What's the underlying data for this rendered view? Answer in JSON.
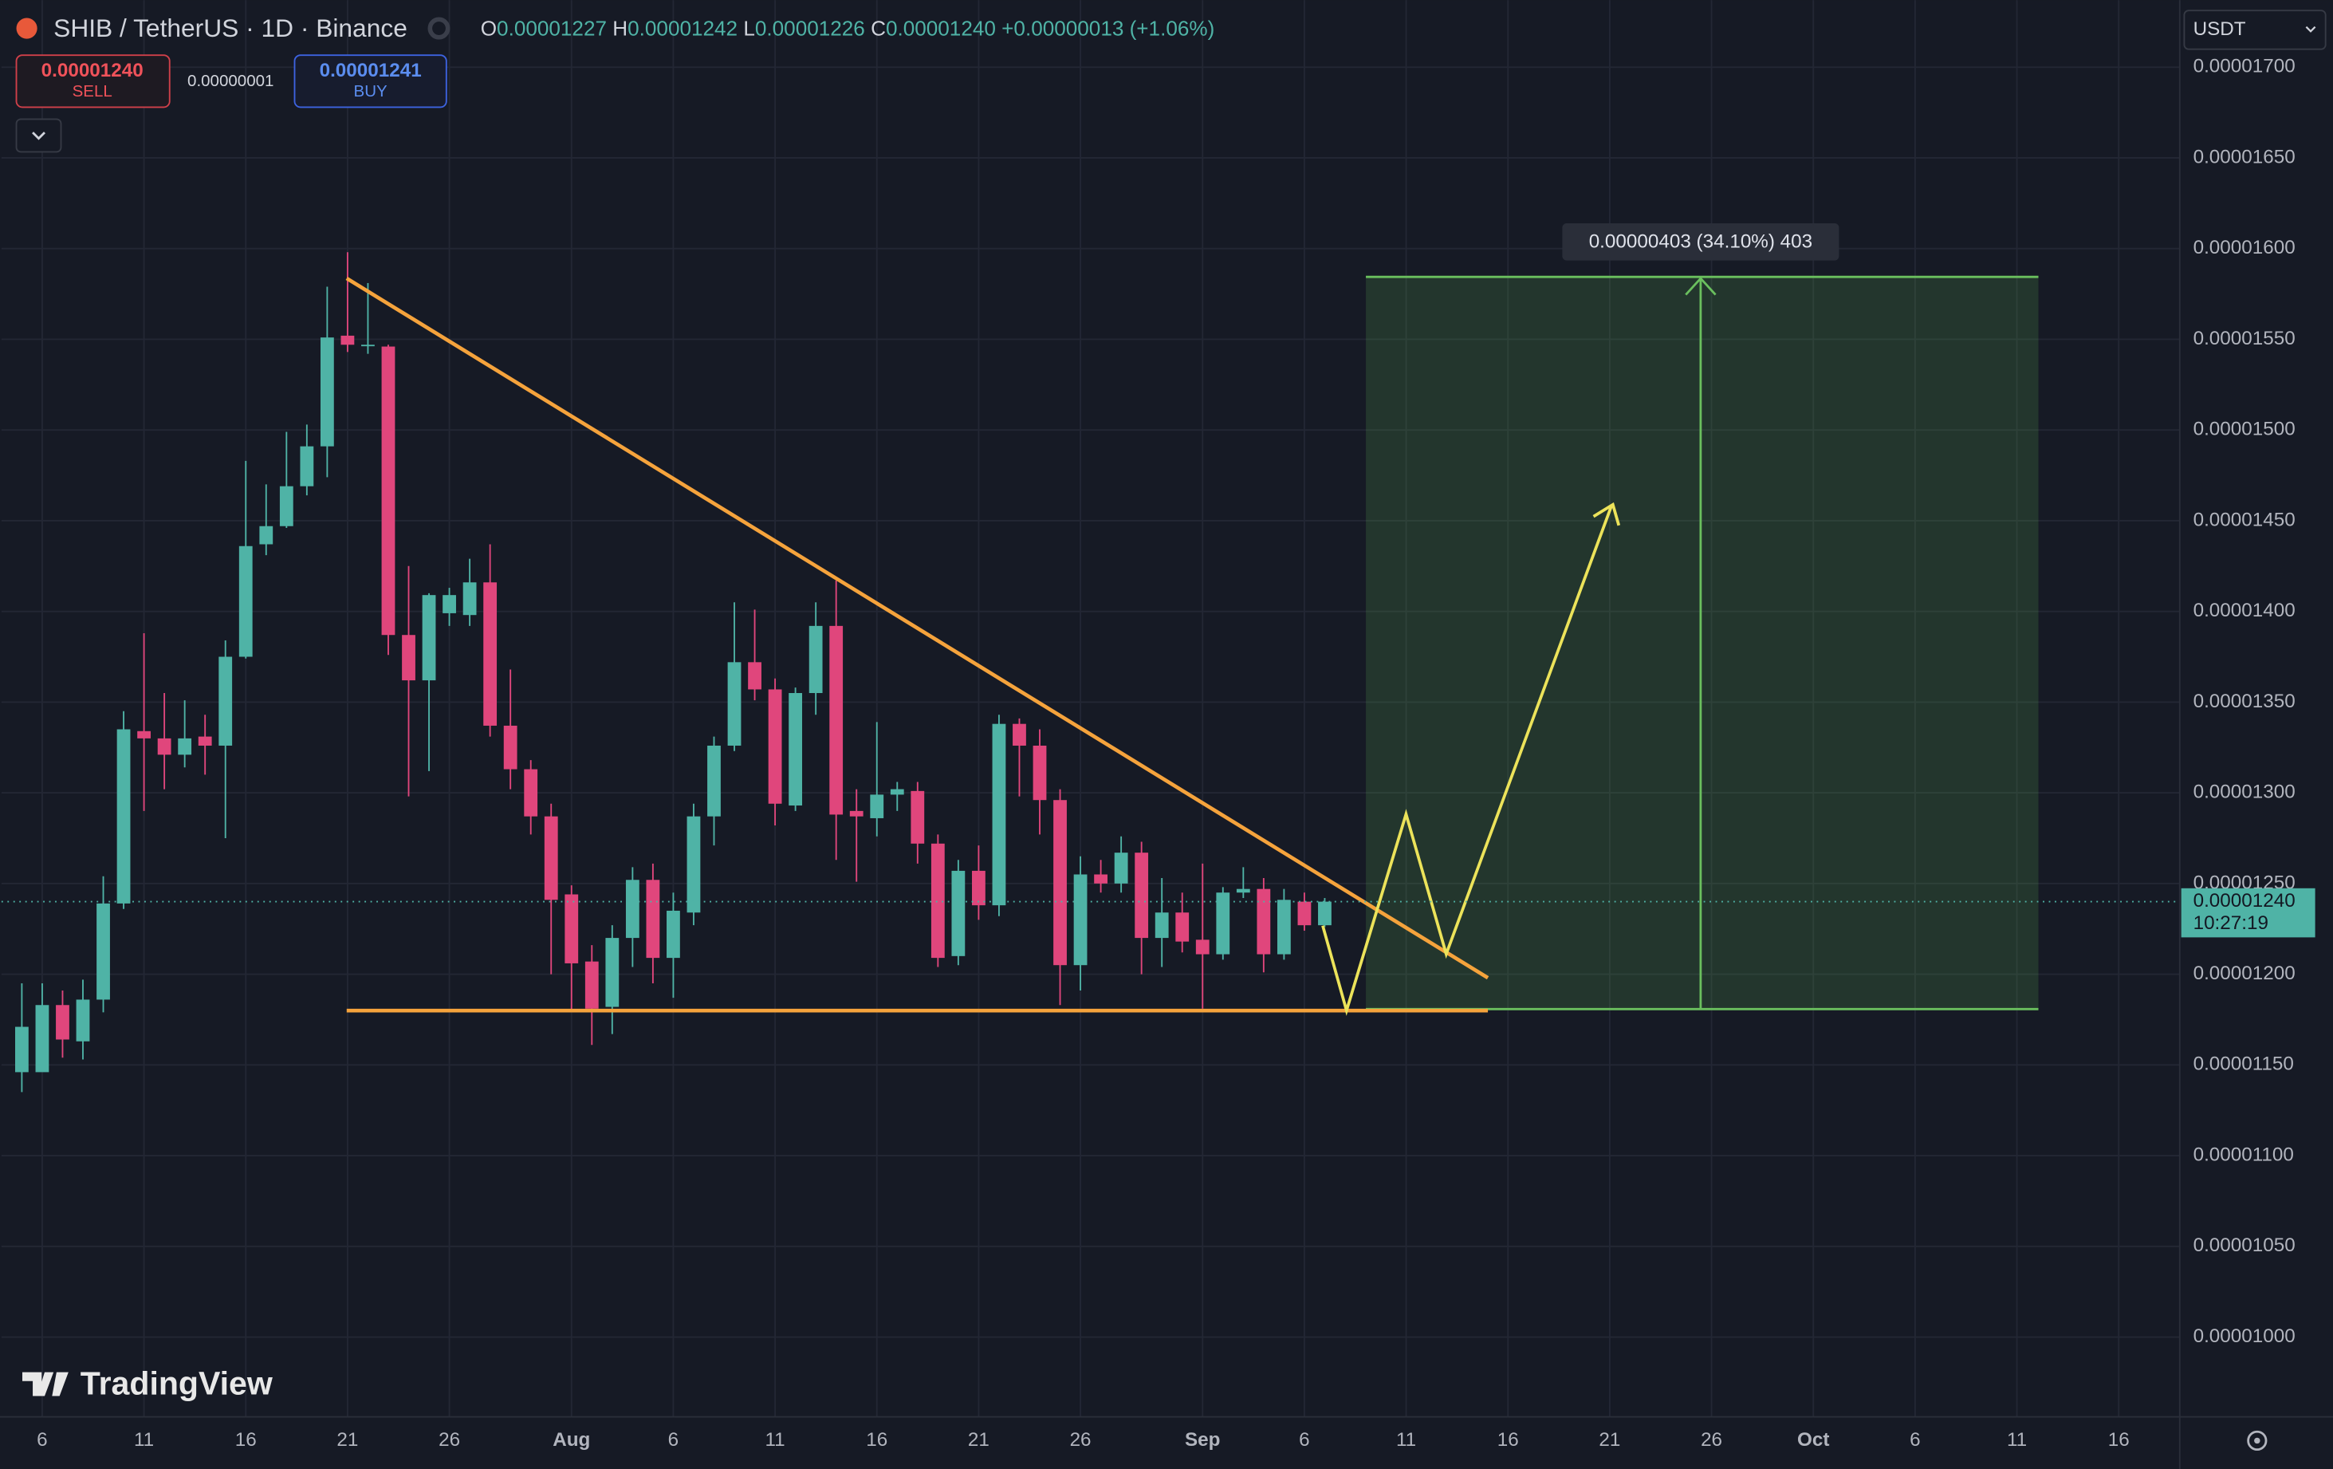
{
  "chart_data": {
    "type": "candlestick",
    "title": "SHIB / TetherUS · 1D · Binance",
    "x": [
      "Jul 5",
      "Jul 6",
      "Jul 7",
      "Jul 8",
      "Jul 9",
      "Jul 10",
      "Jul 11",
      "Jul 12",
      "Jul 13",
      "Jul 14",
      "Jul 15",
      "Jul 16",
      "Jul 17",
      "Jul 18",
      "Jul 19",
      "Jul 20",
      "Jul 21",
      "Jul 22",
      "Jul 23",
      "Jul 24",
      "Jul 25",
      "Jul 26",
      "Jul 27",
      "Jul 28",
      "Jul 29",
      "Jul 30",
      "Jul 31",
      "Aug 1",
      "Aug 2",
      "Aug 3",
      "Aug 4",
      "Aug 5",
      "Aug 6",
      "Aug 7",
      "Aug 8",
      "Aug 9",
      "Aug 10",
      "Aug 11",
      "Aug 12",
      "Aug 13",
      "Aug 14",
      "Aug 15",
      "Aug 16",
      "Aug 17",
      "Aug 18",
      "Aug 19",
      "Aug 20",
      "Aug 21",
      "Aug 22",
      "Aug 23",
      "Aug 24",
      "Aug 25",
      "Aug 26",
      "Aug 27",
      "Aug 28",
      "Aug 29",
      "Aug 30",
      "Aug 31",
      "Sep 1",
      "Sep 2",
      "Sep 3",
      "Sep 4",
      "Sep 5",
      "Sep 6",
      "Sep 7"
    ],
    "open": [
      1.146e-05,
      1.146e-05,
      1.183e-05,
      1.163e-05,
      1.186e-05,
      1.239e-05,
      1.334e-05,
      1.33e-05,
      1.321e-05,
      1.331e-05,
      1.326e-05,
      1.375e-05,
      1.437e-05,
      1.447e-05,
      1.469e-05,
      1.491e-05,
      1.552e-05,
      1.547e-05,
      1.546e-05,
      1.387e-05,
      1.362e-05,
      1.399e-05,
      1.398e-05,
      1.416e-05,
      1.337e-05,
      1.313e-05,
      1.287e-05,
      1.244e-05,
      1.207e-05,
      1.182e-05,
      1.22e-05,
      1.252e-05,
      1.209e-05,
      1.234e-05,
      1.287e-05,
      1.326e-05,
      1.372e-05,
      1.357e-05,
      1.293e-05,
      1.355e-05,
      1.392e-05,
      1.29e-05,
      1.286e-05,
      1.299e-05,
      1.301e-05,
      1.272e-05,
      1.21e-05,
      1.257e-05,
      1.238e-05,
      1.338e-05,
      1.326e-05,
      1.296e-05,
      1.205e-05,
      1.255e-05,
      1.25e-05,
      1.267e-05,
      1.22e-05,
      1.234e-05,
      1.219e-05,
      1.211e-05,
      1.245e-05,
      1.247e-05,
      1.211e-05,
      1.24e-05,
      1.227e-05
    ],
    "high": [
      1.195e-05,
      1.195e-05,
      1.191e-05,
      1.197e-05,
      1.254e-05,
      1.345e-05,
      1.388e-05,
      1.355e-05,
      1.351e-05,
      1.343e-05,
      1.384e-05,
      1.483e-05,
      1.47e-05,
      1.499e-05,
      1.503e-05,
      1.579e-05,
      1.598e-05,
      1.581e-05,
      1.547e-05,
      1.425e-05,
      1.41e-05,
      1.413e-05,
      1.429e-05,
      1.437e-05,
      1.368e-05,
      1.318e-05,
      1.294e-05,
      1.249e-05,
      1.216e-05,
      1.227e-05,
      1.259e-05,
      1.261e-05,
      1.245e-05,
      1.294e-05,
      1.331e-05,
      1.405e-05,
      1.401e-05,
      1.363e-05,
      1.358e-05,
      1.405e-05,
      1.417e-05,
      1.302e-05,
      1.339e-05,
      1.306e-05,
      1.306e-05,
      1.277e-05,
      1.263e-05,
      1.271e-05,
      1.343e-05,
      1.341e-05,
      1.335e-05,
      1.302e-05,
      1.265e-05,
      1.263e-05,
      1.276e-05,
      1.273e-05,
      1.253e-05,
      1.245e-05,
      1.261e-05,
      1.248e-05,
      1.259e-05,
      1.253e-05,
      1.247e-05,
      1.245e-05,
      1.242e-05
    ],
    "low": [
      1.135e-05,
      1.153e-05,
      1.154e-05,
      1.153e-05,
      1.179e-05,
      1.236e-05,
      1.29e-05,
      1.302e-05,
      1.314e-05,
      1.31e-05,
      1.275e-05,
      1.374e-05,
      1.431e-05,
      1.446e-05,
      1.464e-05,
      1.474e-05,
      1.543e-05,
      1.542e-05,
      1.376e-05,
      1.298e-05,
      1.312e-05,
      1.392e-05,
      1.392e-05,
      1.331e-05,
      1.302e-05,
      1.277e-05,
      1.2e-05,
      1.179e-05,
      1.161e-05,
      1.167e-05,
      1.204e-05,
      1.195e-05,
      1.187e-05,
      1.227e-05,
      1.271e-05,
      1.323e-05,
      1.351e-05,
      1.282e-05,
      1.29e-05,
      1.343e-05,
      1.263e-05,
      1.251e-05,
      1.276e-05,
      1.29e-05,
      1.261e-05,
      1.204e-05,
      1.205e-05,
      1.23e-05,
      1.232e-05,
      1.298e-05,
      1.277e-05,
      1.183e-05,
      1.191e-05,
      1.245e-05,
      1.245e-05,
      1.2e-05,
      1.204e-05,
      1.212e-05,
      1.181e-05,
      1.208e-05,
      1.242e-05,
      1.201e-05,
      1.208e-05,
      1.224e-05,
      1.226e-05
    ],
    "close": [
      1.171e-05,
      1.183e-05,
      1.164e-05,
      1.186e-05,
      1.239e-05,
      1.335e-05,
      1.33e-05,
      1.321e-05,
      1.33e-05,
      1.326e-05,
      1.375e-05,
      1.436e-05,
      1.447e-05,
      1.469e-05,
      1.491e-05,
      1.551e-05,
      1.547e-05,
      1.547e-05,
      1.387e-05,
      1.362e-05,
      1.409e-05,
      1.409e-05,
      1.416e-05,
      1.337e-05,
      1.313e-05,
      1.287e-05,
      1.241e-05,
      1.206e-05,
      1.181e-05,
      1.22e-05,
      1.252e-05,
      1.209e-05,
      1.235e-05,
      1.287e-05,
      1.326e-05,
      1.372e-05,
      1.357e-05,
      1.294e-05,
      1.355e-05,
      1.392e-05,
      1.288e-05,
      1.287e-05,
      1.299e-05,
      1.302e-05,
      1.272e-05,
      1.209e-05,
      1.257e-05,
      1.238e-05,
      1.338e-05,
      1.326e-05,
      1.296e-05,
      1.205e-05,
      1.255e-05,
      1.25e-05,
      1.267e-05,
      1.22e-05,
      1.234e-05,
      1.218e-05,
      1.211e-05,
      1.245e-05,
      1.247e-05,
      1.211e-05,
      1.241e-05,
      1.227e-05,
      1.24e-05
    ],
    "up_color": "#4fb3a6",
    "down_color": "#e0467c",
    "xlim": [
      "Jul 4",
      "Oct 19"
    ],
    "xticks": [
      {
        "value": "Jul 6",
        "label": "6"
      },
      {
        "value": "Jul 11",
        "label": "11"
      },
      {
        "value": "Jul 16",
        "label": "16"
      },
      {
        "value": "Jul 21",
        "label": "21"
      },
      {
        "value": "Jul 26",
        "label": "26"
      },
      {
        "value": "Aug 1",
        "label": "Aug"
      },
      {
        "value": "Aug 6",
        "label": "6"
      },
      {
        "value": "Aug 11",
        "label": "11"
      },
      {
        "value": "Aug 16",
        "label": "16"
      },
      {
        "value": "Aug 21",
        "label": "21"
      },
      {
        "value": "Aug 26",
        "label": "26"
      },
      {
        "value": "Sep 1",
        "label": "Sep"
      },
      {
        "value": "Sep 6",
        "label": "6"
      },
      {
        "value": "Sep 11",
        "label": "11"
      },
      {
        "value": "Sep 16",
        "label": "16"
      },
      {
        "value": "Sep 21",
        "label": "21"
      },
      {
        "value": "Sep 26",
        "label": "26"
      },
      {
        "value": "Oct 1",
        "label": "Oct"
      },
      {
        "value": "Oct 6",
        "label": "6"
      },
      {
        "value": "Oct 11",
        "label": "11"
      },
      {
        "value": "Oct 16",
        "label": "16"
      }
    ],
    "ylim": [
      9.56e-06,
      1.737e-05
    ],
    "yticks": [
      {
        "value": 1e-05,
        "label": "0.00001000"
      },
      {
        "value": 1.05e-05,
        "label": "0.00001050"
      },
      {
        "value": 1.1e-05,
        "label": "0.00001100"
      },
      {
        "value": 1.15e-05,
        "label": "0.00001150"
      },
      {
        "value": 1.2e-05,
        "label": "0.00001200"
      },
      {
        "value": 1.25e-05,
        "label": "0.00001250"
      },
      {
        "value": 1.3e-05,
        "label": "0.00001300"
      },
      {
        "value": 1.35e-05,
        "label": "0.00001350"
      },
      {
        "value": 1.4e-05,
        "label": "0.00001400"
      },
      {
        "value": 1.45e-05,
        "label": "0.00001450"
      },
      {
        "value": 1.5e-05,
        "label": "0.00001500"
      },
      {
        "value": 1.55e-05,
        "label": "0.00001550"
      },
      {
        "value": 1.6e-05,
        "label": "0.00001600"
      },
      {
        "value": 1.65e-05,
        "label": "0.00001650"
      },
      {
        "value": 1.7e-05,
        "label": "0.00001700"
      }
    ],
    "grid": true,
    "last_price": 1.24e-05,
    "last_price_label": "0.00001240",
    "countdown": "10:27:19"
  },
  "ohlc_legend": {
    "open_label": "O",
    "open": "0.00001227",
    "high_label": "H",
    "high": "0.00001242",
    "low_label": "L",
    "low": "0.00001226",
    "close_label": "C",
    "close": "0.00001240",
    "change": "+0.00000013 (+1.06%)"
  },
  "trade_panel": {
    "sell_price": "0.00001240",
    "sell_label": "SELL",
    "spread": "0.00000001",
    "buy_price": "0.00001241",
    "buy_label": "BUY"
  },
  "currency": "USDT",
  "measure_label": "0.00000403 (34.10%) 403",
  "watermark": "TradingView"
}
